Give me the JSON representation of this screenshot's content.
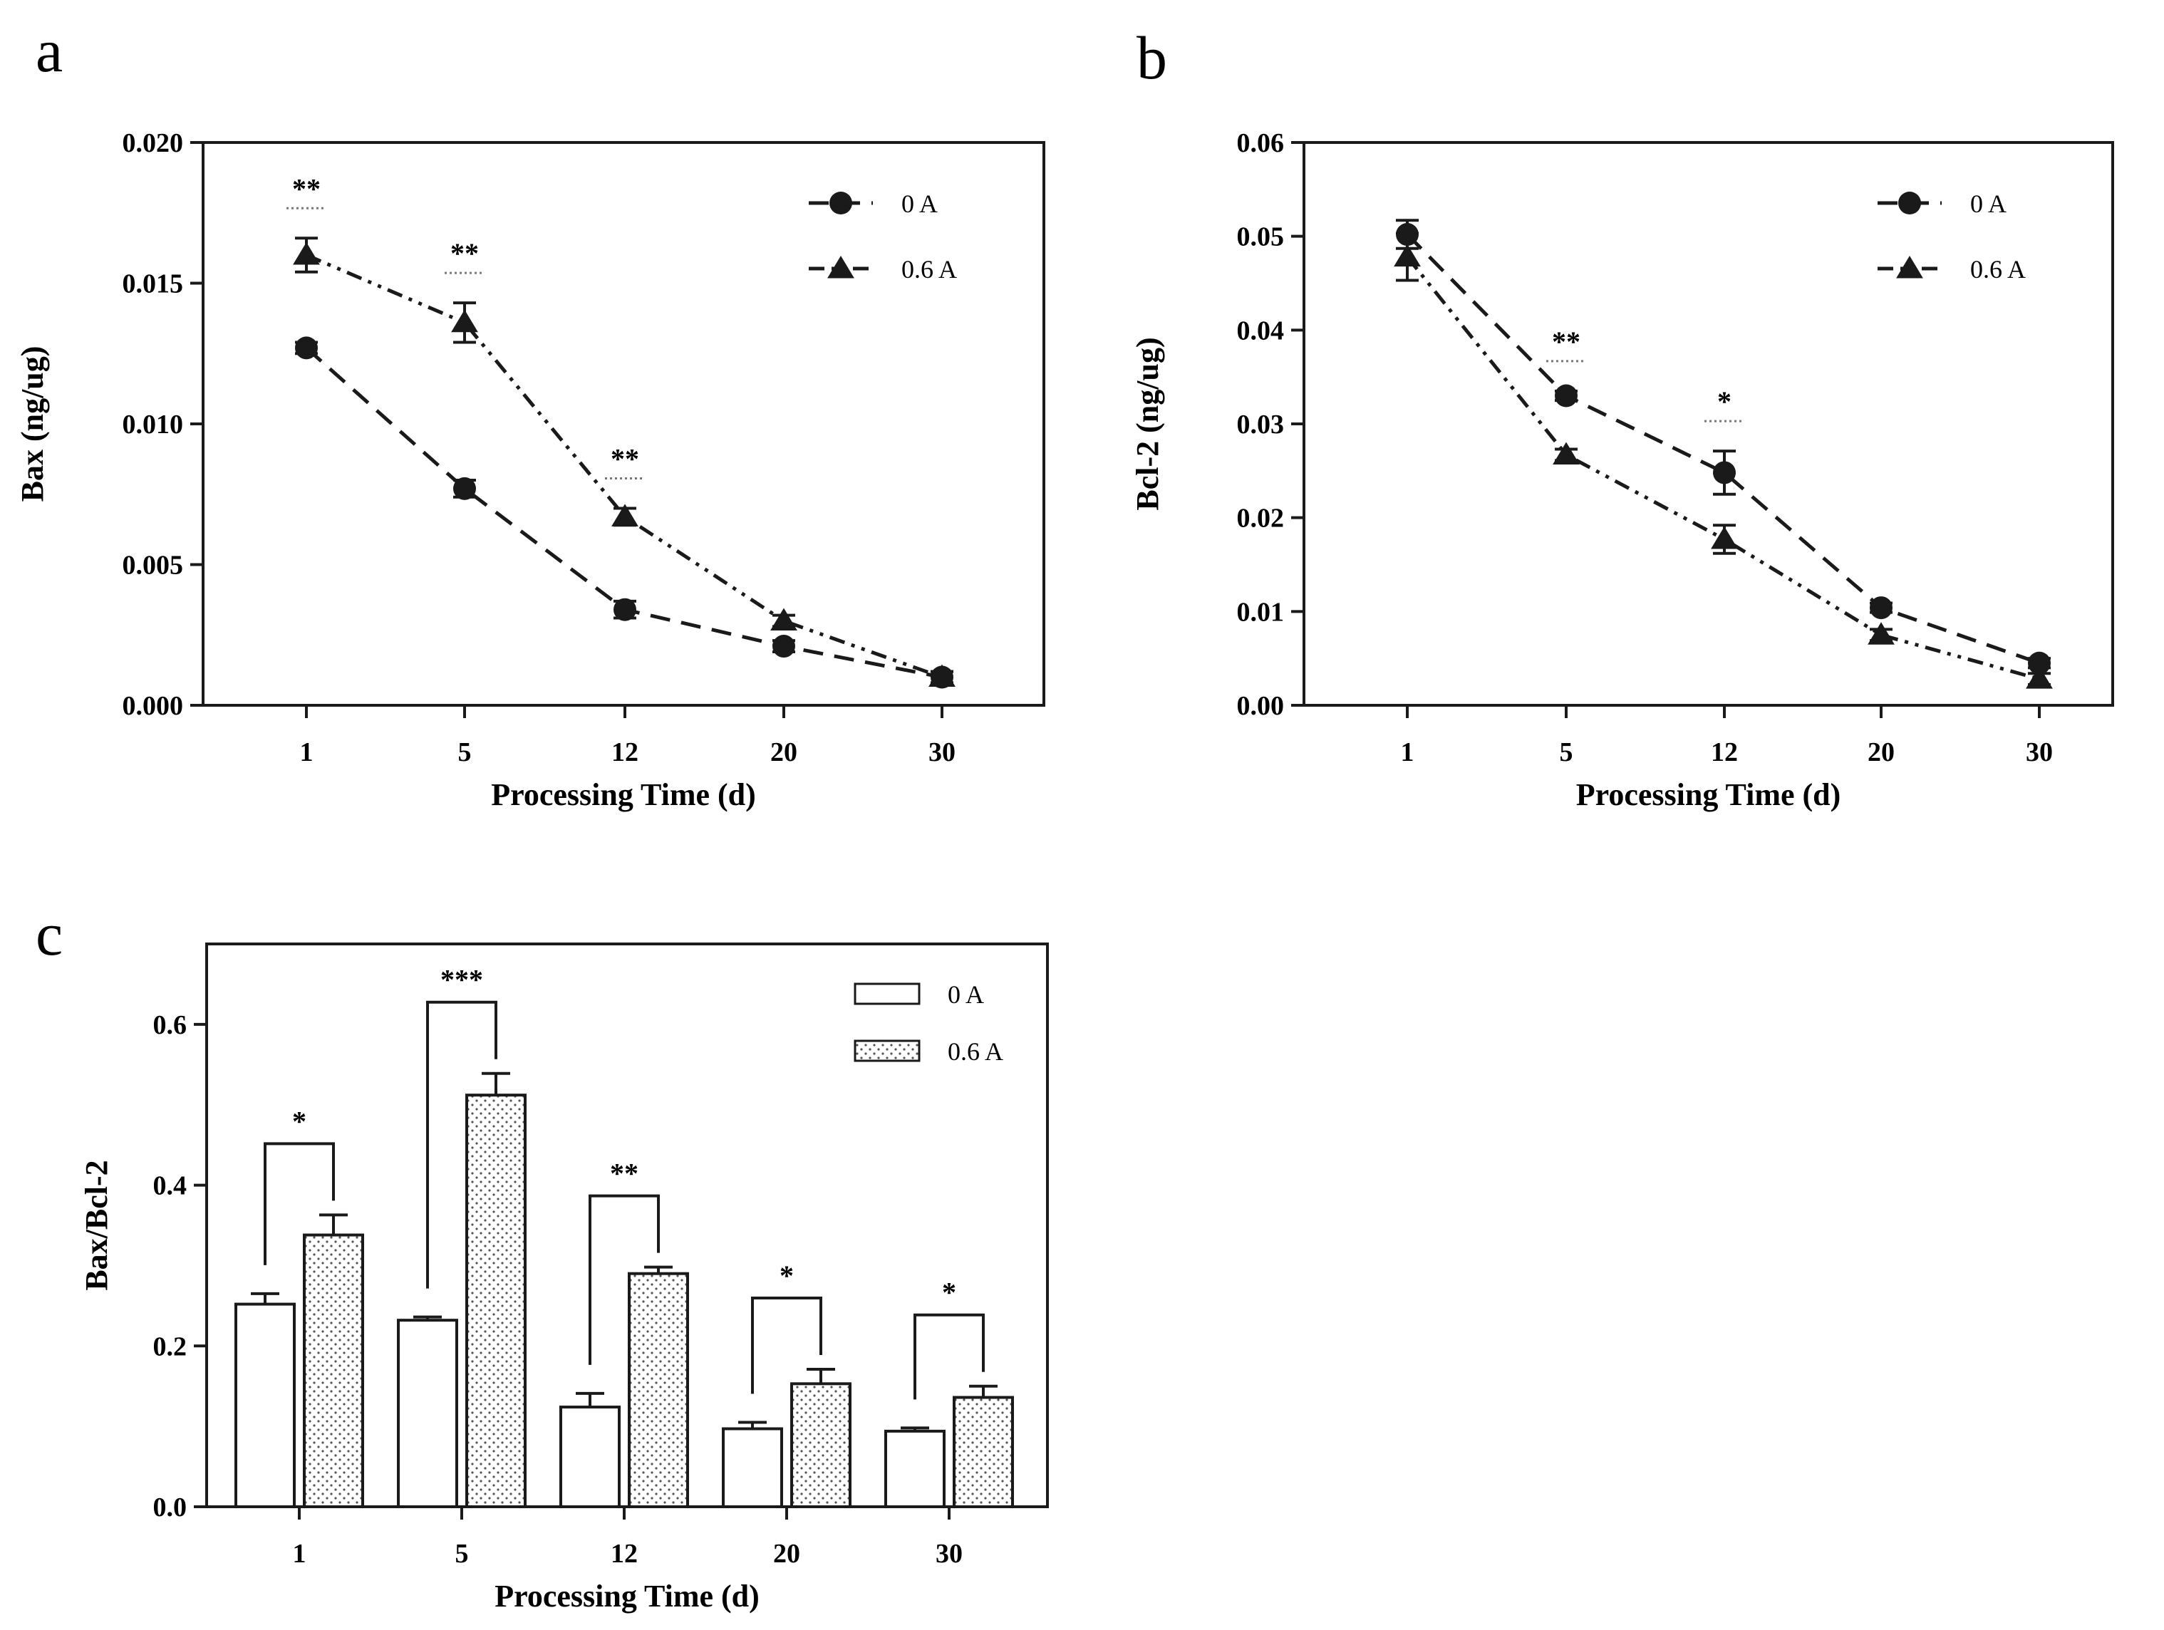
{
  "chart_data": [
    {
      "id": "a",
      "panel_label": "a",
      "type": "line",
      "xlabel": "Processing Time (d)",
      "ylabel": "Bax (ng/ug)",
      "categories": [
        "1",
        "5",
        "12",
        "20",
        "30"
      ],
      "ylim": [
        0,
        0.02
      ],
      "yticks": [
        0.0,
        0.005,
        0.01,
        0.015,
        0.02
      ],
      "yticklabels": [
        "0.000",
        "0.005",
        "0.010",
        "0.015",
        "0.020"
      ],
      "legend_position": "top-right",
      "grid": false,
      "series": [
        {
          "name": "0 A",
          "marker": "circle",
          "line": "dashed",
          "values": [
            0.0127,
            0.0077,
            0.0034,
            0.0021,
            0.001
          ],
          "errors": [
            0.0002,
            0.0003,
            0.0003,
            0.0002,
            0.0002
          ]
        },
        {
          "name": "0.6 A",
          "marker": "triangle",
          "line": "dash-dot-dot",
          "values": [
            0.016,
            0.0136,
            0.0067,
            0.003,
            0.001
          ],
          "errors": [
            0.0006,
            0.0007,
            0.0003,
            0.0002,
            0.0002
          ]
        }
      ],
      "significance": [
        {
          "category": "1",
          "label": "**"
        },
        {
          "category": "5",
          "label": "**"
        },
        {
          "category": "12",
          "label": "**"
        }
      ]
    },
    {
      "id": "b",
      "panel_label": "b",
      "type": "line",
      "xlabel": "Processing Time (d)",
      "ylabel": "Bcl-2 (ng/ug)",
      "categories": [
        "1",
        "5",
        "12",
        "20",
        "30"
      ],
      "ylim": [
        0,
        0.06
      ],
      "yticks": [
        0.0,
        0.01,
        0.02,
        0.03,
        0.04,
        0.05,
        0.06
      ],
      "yticklabels": [
        "0.00",
        "0.01",
        "0.02",
        "0.03",
        "0.04",
        "0.05",
        "0.06"
      ],
      "legend_position": "top-right",
      "grid": false,
      "series": [
        {
          "name": "0 A",
          "marker": "circle",
          "line": "dashed",
          "values": [
            0.0502,
            0.033,
            0.0248,
            0.0104,
            0.0045
          ],
          "errors": [
            0.0015,
            0.0005,
            0.0023,
            0.0005,
            0.0005
          ]
        },
        {
          "name": "0.6 A",
          "marker": "triangle",
          "line": "dash-dot-dot",
          "values": [
            0.0478,
            0.0267,
            0.0177,
            0.0075,
            0.0028
          ],
          "errors": [
            0.0025,
            0.0006,
            0.0015,
            0.0006,
            0.0006
          ]
        }
      ],
      "significance": [
        {
          "category": "5",
          "label": "**"
        },
        {
          "category": "12",
          "label": "*"
        }
      ]
    },
    {
      "id": "c",
      "panel_label": "c",
      "type": "bar",
      "xlabel": "Processing Time (d)",
      "ylabel": "Bax/Bcl-2",
      "categories": [
        "1",
        "5",
        "12",
        "20",
        "30"
      ],
      "ylim": [
        0,
        0.7
      ],
      "yticks": [
        0.0,
        0.2,
        0.4,
        0.6
      ],
      "yticklabels": [
        "0.0",
        "0.2",
        "0.4",
        "0.6"
      ],
      "legend_position": "top-right",
      "grid": false,
      "series": [
        {
          "name": "0 A",
          "fill": "open",
          "values": [
            0.252,
            0.232,
            0.124,
            0.097,
            0.094
          ],
          "errors": [
            0.013,
            0.004,
            0.017,
            0.008,
            0.004
          ]
        },
        {
          "name": "0.6 A",
          "fill": "dotted",
          "values": [
            0.338,
            0.512,
            0.29,
            0.153,
            0.136
          ],
          "errors": [
            0.025,
            0.027,
            0.008,
            0.018,
            0.014
          ]
        }
      ],
      "significance": [
        {
          "category": "1",
          "label": "*"
        },
        {
          "category": "5",
          "label": "***"
        },
        {
          "category": "12",
          "label": "**"
        },
        {
          "category": "20",
          "label": "*"
        },
        {
          "category": "30",
          "label": "*"
        }
      ]
    }
  ]
}
